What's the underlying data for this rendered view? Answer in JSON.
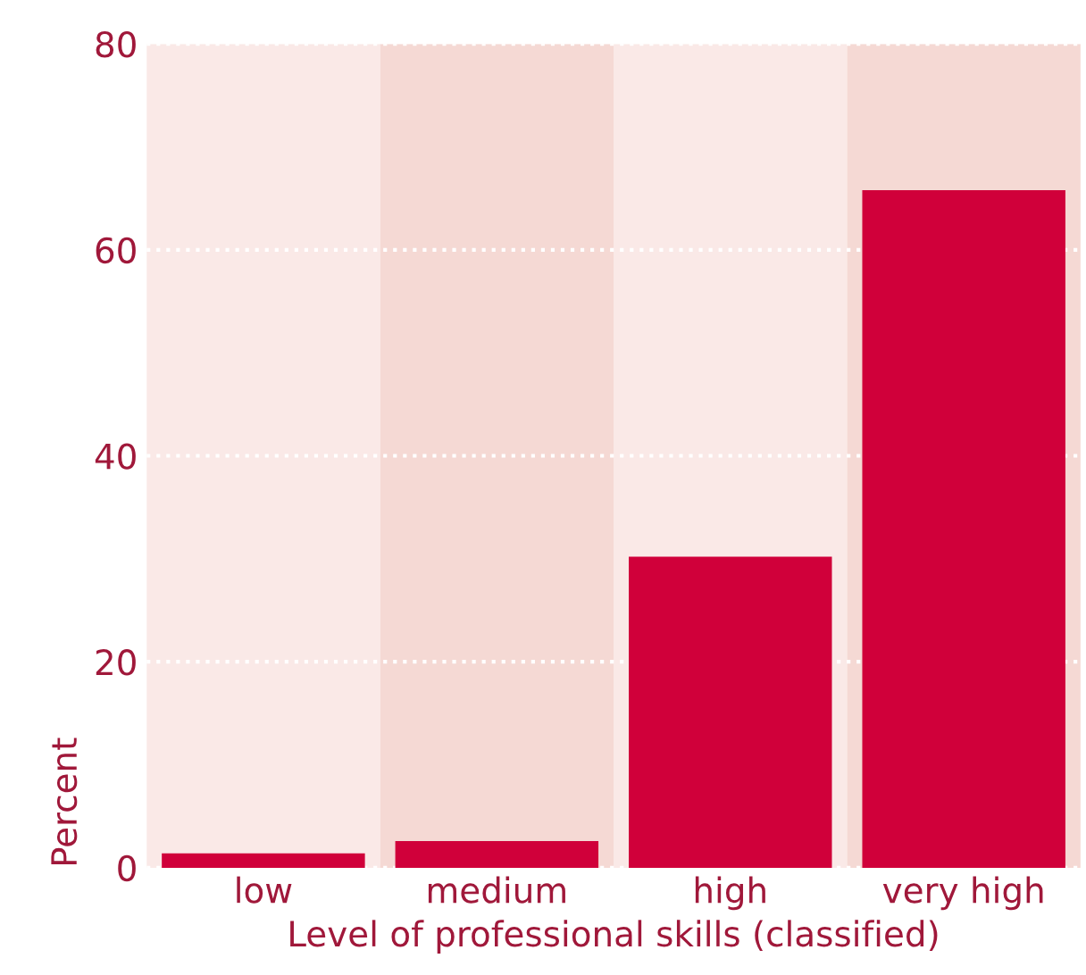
{
  "chart_data": {
    "type": "bar",
    "xlabel": "Level of professional skills (classified)",
    "ylabel": "Percent",
    "categories": [
      "low",
      "medium",
      "high",
      "very high"
    ],
    "values": [
      1.4,
      2.6,
      30.2,
      65.8
    ],
    "color": "#d0003a",
    "ylim": [
      0,
      80
    ],
    "yticks": [
      0,
      20,
      40,
      60,
      80
    ],
    "grid": "y",
    "line_style": "dotted",
    "bands": [
      {
        "axis": "x",
        "from": "low",
        "to": "low",
        "color": "#fae9e7"
      },
      {
        "axis": "x",
        "from": "medium",
        "to": "medium",
        "color": "#f5d9d4"
      },
      {
        "axis": "x",
        "from": "high",
        "to": "high",
        "color": "#fae9e7"
      },
      {
        "axis": "x",
        "from": "very high",
        "to": "very high",
        "color": "#f5d9d4"
      }
    ]
  }
}
